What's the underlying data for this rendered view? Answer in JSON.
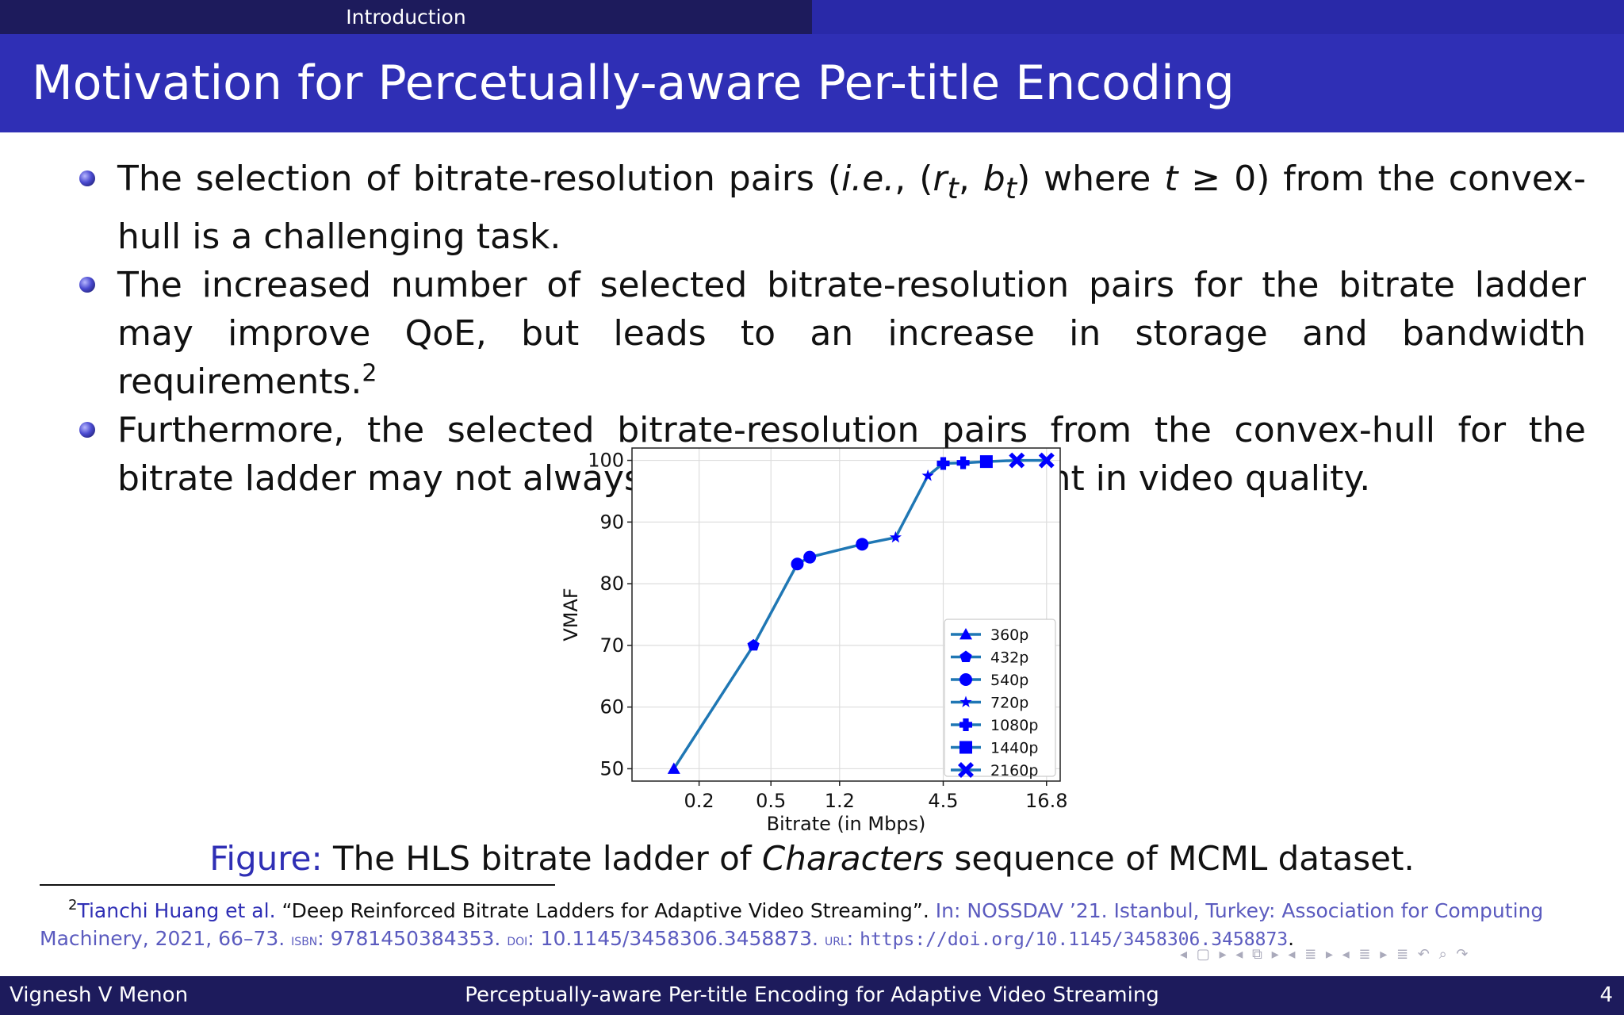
{
  "header": {
    "section": "Introduction"
  },
  "title": "Motivation for Percetually-aware Per-title Encoding",
  "bullets": [
    {
      "before": "The selection of bitrate-resolution pairs (",
      "ie": "i.e.",
      "mid": ", (",
      "rt": "r",
      "sub_t": "t",
      "comma": ", ",
      "bt": "b",
      "sub_t2": "t",
      "close": ") where ",
      "tvar": "t",
      "after": " ≥ 0) from the convex-hull is a challenging task."
    },
    {
      "text": "The increased number of selected bitrate-resolution pairs for the bitrate ladder may improve QoE, but leads to an increase in storage and bandwidth requirements.",
      "footnote_mark": "2"
    },
    {
      "text": "Furthermore, the selected bitrate-resolution pairs from the convex-hull for the bitrate ladder may not always be perceptually different in video quality."
    }
  ],
  "chart_data": {
    "type": "line",
    "xlabel": "Bitrate (in Mbps)",
    "ylabel": "VMAF",
    "x_scale": "log",
    "x_ticks": [
      "0.2",
      "0.5",
      "1.2",
      "4.5",
      "16.8"
    ],
    "y_ticks": [
      "50",
      "60",
      "70",
      "80",
      "90",
      "100"
    ],
    "ylim": [
      48,
      102
    ],
    "xlim": [
      0.085,
      20
    ],
    "grid": true,
    "legend_position": "lower-right",
    "line_color": "#1f77b4",
    "marker_color": "#0000ff",
    "series": [
      {
        "name": "360p",
        "marker": "triangle",
        "points": [
          [
            0.145,
            50
          ]
        ]
      },
      {
        "name": "432p",
        "marker": "pentagon",
        "points": [
          [
            0.4,
            70
          ]
        ]
      },
      {
        "name": "540p",
        "marker": "circle",
        "points": [
          [
            0.7,
            83.2
          ],
          [
            0.82,
            84.3
          ],
          [
            1.6,
            86.4
          ]
        ]
      },
      {
        "name": "720p",
        "marker": "star",
        "points": [
          [
            2.45,
            87.5
          ],
          [
            3.7,
            97.5
          ]
        ]
      },
      {
        "name": "1080p",
        "marker": "plus",
        "points": [
          [
            4.5,
            99.5
          ],
          [
            5.8,
            99.6
          ]
        ]
      },
      {
        "name": "1440p",
        "marker": "square",
        "points": [
          [
            7.8,
            99.8
          ]
        ]
      },
      {
        "name": "2160p",
        "marker": "x",
        "points": [
          [
            11.5,
            100
          ],
          [
            16.8,
            100
          ]
        ]
      }
    ]
  },
  "caption": {
    "label": "Figure:",
    "pre": "The HLS bitrate ladder of ",
    "italic": "Characters",
    "post": " sequence of MCML dataset."
  },
  "footnote": {
    "number": "2",
    "author": "Tianchi Huang et al.",
    "title": "“Deep Reinforced Bitrate Ladders for Adaptive Video Streaming”.",
    "venue": "In: NOSSDAV ’21. Istanbul, Turkey: Association for Computing Machinery, 2021, 66–73.",
    "isbn_label": "isbn",
    "isbn": ": 9781450384353.",
    "doi_label": "doi",
    "doi": ": 10.1145/3458306.3458873.",
    "url_label": "url",
    "url": "https://doi.org/10.1145/3458306.3458873",
    "end": "."
  },
  "footer": {
    "author": "Vignesh V Menon",
    "talk": "Perceptually-aware Per-title Encoding for Adaptive Video Streaming",
    "page": "4"
  },
  "nav_symbols": "◂ ▢ ▸ ◂ ⧉ ▸ ◂ ≣ ▸ ◂ ≣ ▸   ≣   ↶ ⌕ ↷"
}
